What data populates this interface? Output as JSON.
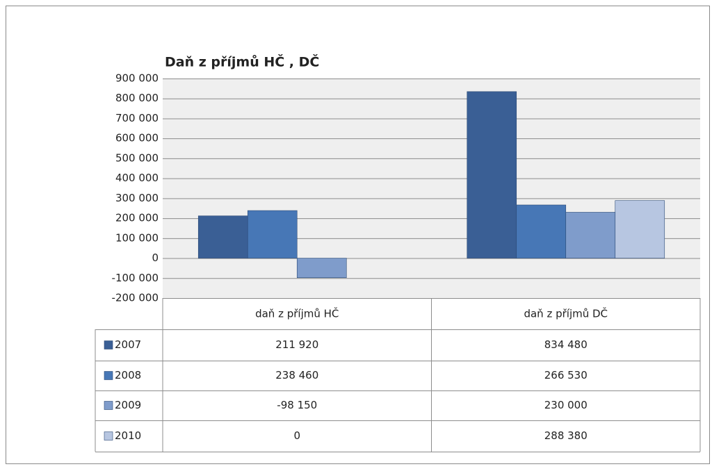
{
  "chart_data": {
    "type": "bar",
    "title": "Daň z příjmů HČ , DČ",
    "categories": [
      "daň z příjmů HČ",
      "daň z příjmů DČ"
    ],
    "series": [
      {
        "name": "2007",
        "color": "#3a5f95",
        "values": [
          211920,
          834480
        ],
        "value_labels": [
          "211 920",
          "834 480"
        ]
      },
      {
        "name": "2008",
        "color": "#4777b6",
        "values": [
          238460,
          266530
        ],
        "value_labels": [
          "238 460",
          "266 530"
        ]
      },
      {
        "name": "2009",
        "color": "#7f9ccb",
        "values": [
          -98150,
          230000
        ],
        "value_labels": [
          "-98 150",
          "230 000"
        ]
      },
      {
        "name": "2010",
        "color": "#b7c6e1",
        "values": [
          0,
          288380
        ],
        "value_labels": [
          "0",
          "288 380"
        ]
      }
    ],
    "ylim": [
      -200000,
      900000
    ],
    "yticks": [
      {
        "value": -200000,
        "label": "-200 000"
      },
      {
        "value": -100000,
        "label": "-100 000"
      },
      0,
      {
        "value": 100000,
        "label": "100 000"
      },
      {
        "value": 200000,
        "label": "200 000"
      },
      {
        "value": 300000,
        "label": "300 000"
      },
      {
        "value": 400000,
        "label": "400 000"
      },
      {
        "value": 500000,
        "label": "500 000"
      },
      {
        "value": 600000,
        "label": "600 000"
      },
      {
        "value": 700000,
        "label": "700 000"
      },
      {
        "value": 800000,
        "label": "800 000"
      },
      {
        "value": 900000,
        "label": "900 000"
      }
    ],
    "grid": true
  }
}
